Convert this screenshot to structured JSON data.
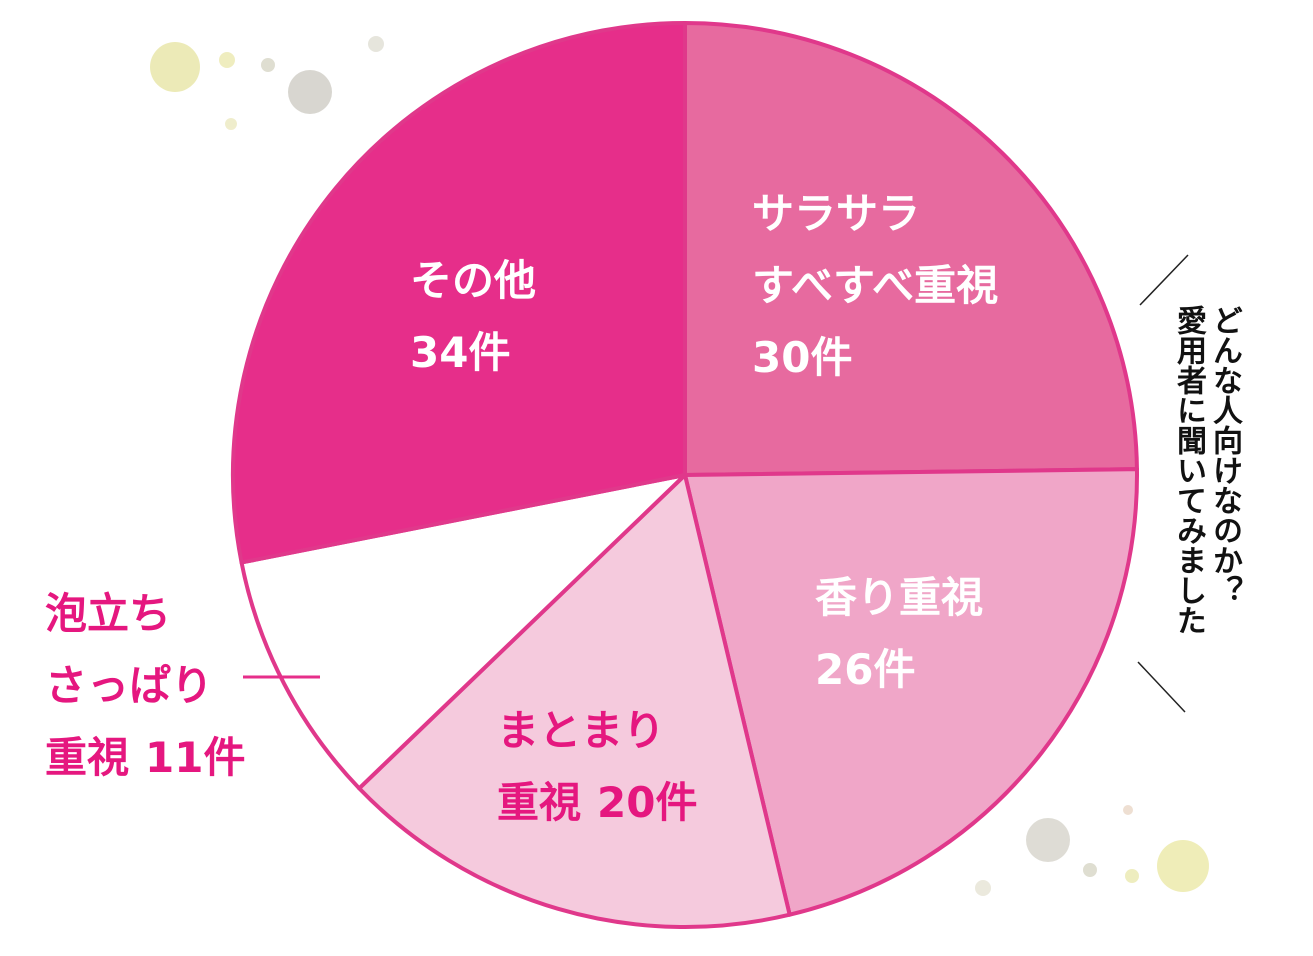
{
  "chart_data": {
    "type": "pie",
    "categories": [
      "サラサラ\nすべすべ重視",
      "香り重視",
      "まとまり\n重視",
      "泡立ち\nさっぱり\n重視",
      "その他"
    ],
    "values": [
      30,
      26,
      20,
      11,
      34
    ],
    "value_labels": [
      "30件",
      "26件",
      "20件",
      "11件",
      "34件"
    ],
    "colors": [
      "#e76a9f",
      "#f0a6c8",
      "#f5cadd",
      "#ffffff",
      "#e62e8a"
    ],
    "annotation": "どんな人向けなのか？\n愛用者に聞いてみました"
  }
}
